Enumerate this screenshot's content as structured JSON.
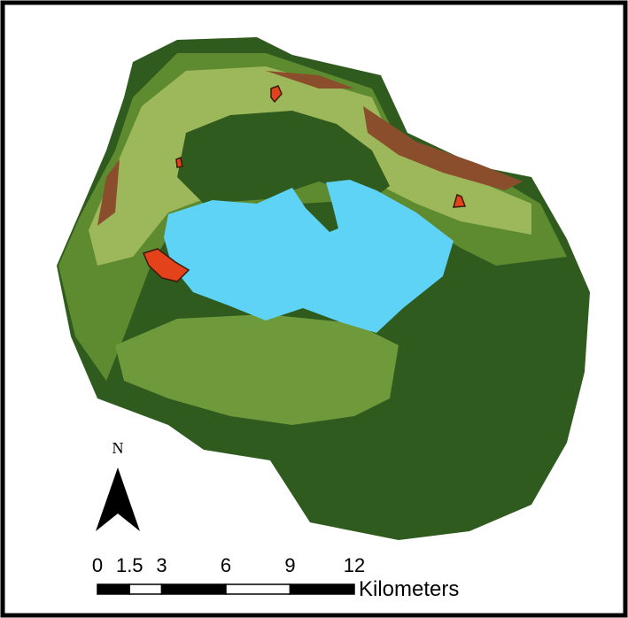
{
  "north_arrow": {
    "label": "N"
  },
  "scale_bar": {
    "ticks": [
      0,
      1.5,
      3,
      6,
      9,
      12
    ],
    "unit": "Kilometers"
  }
}
